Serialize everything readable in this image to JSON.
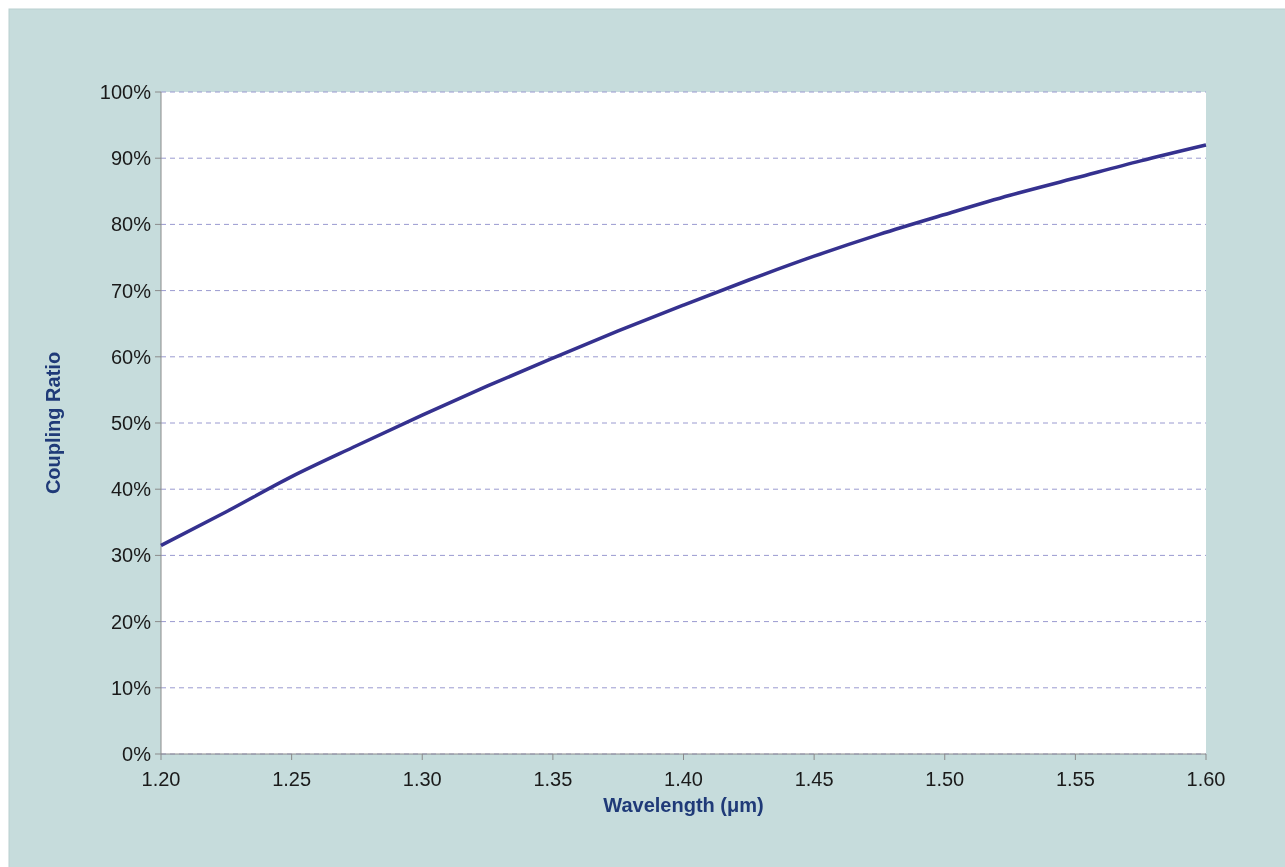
{
  "chart_data": {
    "type": "line",
    "xlabel": "Wavelength (μm)",
    "ylabel": "Coupling Ratio",
    "x": [
      1.2,
      1.225,
      1.25,
      1.275,
      1.3,
      1.325,
      1.35,
      1.375,
      1.4,
      1.425,
      1.45,
      1.475,
      1.5,
      1.525,
      1.55,
      1.575,
      1.6
    ],
    "series": [
      {
        "color": "#35318f",
        "values": [
          31.5,
          36.6,
          41.9,
          46.6,
          51.2,
          55.6,
          59.8,
          63.9,
          67.8,
          71.6,
          75.2,
          78.5,
          81.5,
          84.4,
          87.0,
          89.6,
          92.0
        ]
      }
    ],
    "xlim": [
      1.2,
      1.6
    ],
    "xticks": [
      {
        "value": 1.2,
        "label": "1.20"
      },
      {
        "value": 1.25,
        "label": "1.25"
      },
      {
        "value": 1.3,
        "label": "1.30"
      },
      {
        "value": 1.35,
        "label": "1.35"
      },
      {
        "value": 1.4,
        "label": "1.40"
      },
      {
        "value": 1.45,
        "label": "1.45"
      },
      {
        "value": 1.5,
        "label": "1.50"
      },
      {
        "value": 1.55,
        "label": "1.55"
      },
      {
        "value": 1.6,
        "label": "1.60"
      }
    ],
    "ylim": [
      0,
      100
    ],
    "yticks": [
      {
        "value": 0,
        "label": "0%"
      },
      {
        "value": 10,
        "label": "10%"
      },
      {
        "value": 20,
        "label": "20%"
      },
      {
        "value": 30,
        "label": "30%"
      },
      {
        "value": 40,
        "label": "40%"
      },
      {
        "value": 50,
        "label": "50%"
      },
      {
        "value": 60,
        "label": "60%"
      },
      {
        "value": 70,
        "label": "70%"
      },
      {
        "value": 80,
        "label": "80%"
      },
      {
        "value": 90,
        "label": "90%"
      },
      {
        "value": 100,
        "label": "100%"
      }
    ],
    "grid": "y",
    "line_style": "solid",
    "marker": "none"
  }
}
